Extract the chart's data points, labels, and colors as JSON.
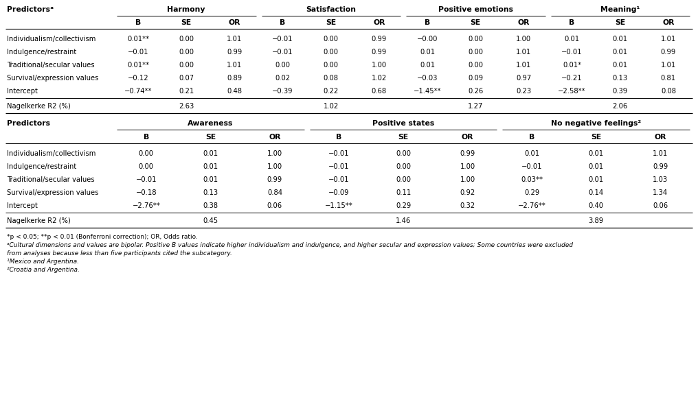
{
  "table1_predictors_label": "Predictorsᵃ",
  "table1_header_group": [
    "Harmony",
    "Satisfaction",
    "Positive emotions",
    "Meaning¹"
  ],
  "table1_rows": [
    [
      "Individualism/collectivism",
      "0.01**",
      "0.00",
      "1.01",
      "−0.01",
      "0.00",
      "0.99",
      "−0.00",
      "0.00",
      "1.00",
      "0.01",
      "0.01",
      "1.01"
    ],
    [
      "Indulgence/restraint",
      "−0.01",
      "0.00",
      "0.99",
      "−0.01",
      "0.00",
      "0.99",
      "0.01",
      "0.00",
      "1.01",
      "−0.01",
      "0.01",
      "0.99"
    ],
    [
      "Traditional/secular values",
      "0.01**",
      "0.00",
      "1.01",
      "0.00",
      "0.00",
      "1.00",
      "0.01",
      "0.00",
      "1.01",
      "0.01*",
      "0.01",
      "1.01"
    ],
    [
      "Survival/expression values",
      "−0.12",
      "0.07",
      "0.89",
      "0.02",
      "0.08",
      "1.02",
      "−0.03",
      "0.09",
      "0.97",
      "−0.21",
      "0.13",
      "0.81"
    ],
    [
      "Intercept",
      "−0.74**",
      "0.21",
      "0.48",
      "−0.39",
      "0.22",
      "0.68",
      "−1.45**",
      "0.26",
      "0.23",
      "−2.58**",
      "0.39",
      "0.08"
    ]
  ],
  "table1_nagelkerke": [
    "2.63",
    "1.02",
    "1.27",
    "2.06"
  ],
  "table2_predictors_label": "Predictors",
  "table2_header_group": [
    "Awareness",
    "Positive states",
    "No negative feelings²"
  ],
  "table2_rows": [
    [
      "Individualism/collectivism",
      "0.00",
      "0.01",
      "1.00",
      "−0.01",
      "0.00",
      "0.99",
      "0.01",
      "0.01",
      "1.01"
    ],
    [
      "Indulgence/restraint",
      "0.00",
      "0.01",
      "1.00",
      "−0.01",
      "0.00",
      "1.00",
      "−0.01",
      "0.01",
      "0.99"
    ],
    [
      "Traditional/secular values",
      "−0.01",
      "0.01",
      "0.99",
      "−0.01",
      "0.00",
      "1.00",
      "0.03**",
      "0.01",
      "1.03"
    ],
    [
      "Survival/expression values",
      "−0.18",
      "0.13",
      "0.84",
      "−0.09",
      "0.11",
      "0.92",
      "0.29",
      "0.14",
      "1.34"
    ],
    [
      "Intercept",
      "−2.76**",
      "0.38",
      "0.06",
      "−1.15**",
      "0.29",
      "0.32",
      "−2.76**",
      "0.40",
      "0.06"
    ]
  ],
  "table2_nagelkerke": [
    "0.45",
    "1.46",
    "3.89"
  ],
  "footnote_normal": "*p < 0.05; **p < 0.01 (Bonferroni correction); OR, Odds ratio.",
  "footnote_italic": [
    "ᵃCultural dimensions and values are bipolar. Positive B values indicate higher individualism and indulgence, and higher secular and expression values; Some countries were excluded",
    "from analyses because less than five participants cited the subcategory.",
    "¹Mexico and Argentina.",
    "²Croatia and Argentina."
  ],
  "fs_header": 7.8,
  "fs_body": 7.2,
  "fs_foot": 6.5
}
